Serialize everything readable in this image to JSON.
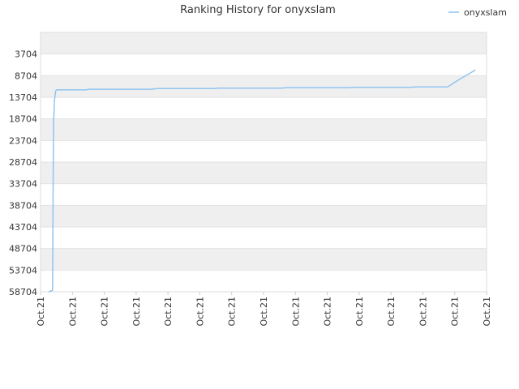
{
  "chart_data": {
    "type": "line",
    "title": "Ranking History for onyxslam",
    "xlabel": "",
    "ylabel": "",
    "y_inverted": true,
    "ylim": [
      58704,
      -1296
    ],
    "yticks": [
      3704,
      8704,
      13704,
      18704,
      23704,
      28704,
      33704,
      38704,
      43704,
      48704,
      53704,
      58704
    ],
    "xlim": [
      0,
      1
    ],
    "xtick_labels": [
      "Oct.21",
      "Oct.21",
      "Oct.21",
      "Oct.21",
      "Oct.21",
      "Oct.21",
      "Oct.21",
      "Oct.21",
      "Oct.21",
      "Oct.21",
      "Oct.21",
      "Oct.21",
      "Oct.21",
      "Oct.21",
      "Oct.21"
    ],
    "grid": true,
    "legend": {
      "position": "top-right"
    },
    "series": [
      {
        "name": "onyxslam",
        "color": "#90c4f0",
        "x": [
          0.018,
          0.027,
          0.028,
          0.028,
          0.029,
          0.029,
          0.03,
          0.031,
          0.032,
          0.034,
          0.036,
          0.1,
          0.11,
          0.25,
          0.26,
          0.39,
          0.4,
          0.54,
          0.55,
          0.69,
          0.7,
          0.83,
          0.84,
          0.913,
          0.925,
          0.94,
          0.975
        ],
        "y": [
          58704,
          58400,
          38704,
          37704,
          21000,
          19000,
          18200,
          14800,
          13700,
          12200,
          12000,
          12000,
          11850,
          11850,
          11700,
          11700,
          11600,
          11600,
          11500,
          11500,
          11400,
          11400,
          11300,
          11300,
          10500,
          9500,
          7400
        ]
      }
    ]
  }
}
